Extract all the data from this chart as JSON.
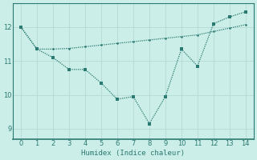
{
  "line1_x": [
    0,
    1,
    2,
    3,
    4,
    5,
    6,
    7,
    8,
    9,
    10,
    11,
    12,
    13,
    14
  ],
  "line1_y": [
    12.0,
    11.35,
    11.1,
    10.75,
    10.75,
    10.35,
    9.87,
    9.95,
    9.15,
    9.95,
    11.35,
    10.85,
    12.1,
    12.3,
    12.45
  ],
  "line2_x": [
    0,
    1,
    2,
    3,
    4,
    5,
    6,
    7,
    8,
    9,
    10,
    11,
    12,
    13,
    14
  ],
  "line2_y": [
    12.0,
    11.35,
    11.35,
    11.37,
    11.42,
    11.47,
    11.52,
    11.57,
    11.62,
    11.67,
    11.72,
    11.77,
    11.87,
    11.97,
    12.07
  ],
  "line_color": "#2a7a72",
  "bg_color": "#cceee8",
  "grid_color": "#b8ddd8",
  "xlabel": "Humidex (Indice chaleur)",
  "xlim": [
    -0.5,
    14.5
  ],
  "ylim": [
    8.7,
    12.7
  ],
  "yticks": [
    9,
    10,
    11,
    12
  ],
  "xticks": [
    0,
    1,
    2,
    3,
    4,
    5,
    6,
    7,
    8,
    9,
    10,
    11,
    12,
    13,
    14
  ]
}
